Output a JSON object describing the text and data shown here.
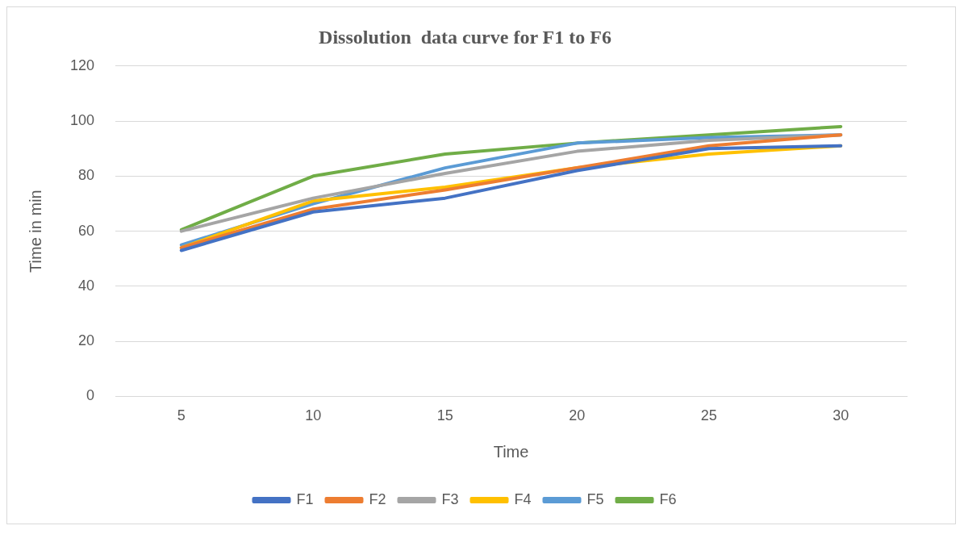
{
  "chart_data": {
    "type": "line",
    "title": "Dissolution  data curve for F1 to F6",
    "xlabel": "Time",
    "ylabel": "Time in min",
    "categories": [
      "5",
      "10",
      "15",
      "20",
      "25",
      "30"
    ],
    "series": [
      {
        "name": "F1",
        "color": "#4472c4",
        "values": [
          53,
          67,
          72,
          82,
          90,
          91
        ]
      },
      {
        "name": "F2",
        "color": "#ed7d31",
        "values": [
          54,
          68,
          75,
          83,
          91,
          95
        ]
      },
      {
        "name": "F3",
        "color": "#a5a5a5",
        "values": [
          60,
          72,
          81,
          89,
          93,
          95
        ]
      },
      {
        "name": "F4",
        "color": "#ffc000",
        "values": [
          54,
          71,
          76,
          83,
          88,
          91
        ]
      },
      {
        "name": "F5",
        "color": "#5b9bd5",
        "values": [
          55,
          70,
          83,
          92,
          94,
          95
        ]
      },
      {
        "name": "F6",
        "color": "#70ad47",
        "values": [
          60.5,
          80,
          88,
          92,
          95,
          98
        ]
      }
    ],
    "ylim": [
      0,
      120
    ],
    "yticks": [
      0,
      20,
      40,
      60,
      80,
      100,
      120
    ],
    "grid": "y",
    "legend": "bottom",
    "marker": "none",
    "line_style": "solid"
  }
}
